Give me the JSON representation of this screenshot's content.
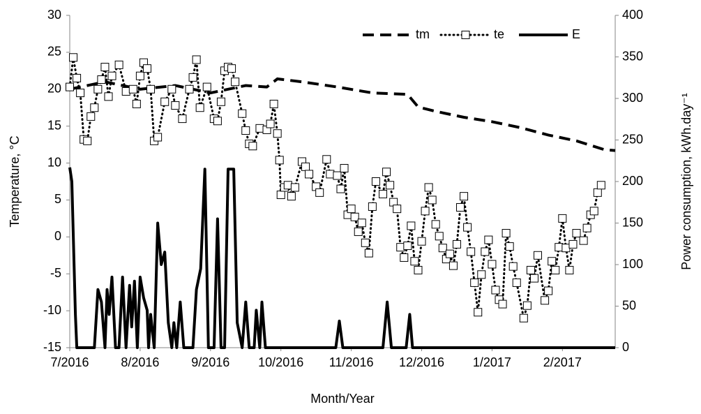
{
  "chart_data": {
    "type": "line",
    "xlabel": "Month/Year",
    "ylabel": "Temperature, °C",
    "y2label": "Power consumption, kWh.day⁻¹",
    "xlim": [
      0,
      7.75
    ],
    "xticks": [
      {
        "value": 0,
        "label": "7/2016"
      },
      {
        "value": 1,
        "label": "8/2016"
      },
      {
        "value": 2,
        "label": "9/2016"
      },
      {
        "value": 3,
        "label": "10/2016"
      },
      {
        "value": 4,
        "label": "11/2016"
      },
      {
        "value": 5,
        "label": "12/2016"
      },
      {
        "value": 6,
        "label": "1/2017"
      },
      {
        "value": 7,
        "label": "2/2017"
      }
    ],
    "ylim": [
      -15,
      30
    ],
    "yticks": [
      -15,
      -10,
      -5,
      0,
      5,
      10,
      15,
      20,
      25,
      30
    ],
    "y2lim": [
      0,
      400
    ],
    "y2ticks": [
      0,
      50,
      100,
      150,
      200,
      250,
      300,
      350,
      400
    ],
    "legend": "top-right",
    "series": [
      {
        "name": "tm",
        "color": "#000000",
        "style": "dashed",
        "x": [
          0,
          0.5,
          1,
          1.5,
          2,
          2.5,
          2.8,
          2.95,
          3.3,
          3.8,
          4.3,
          4.8,
          4.95,
          5.2,
          5.6,
          6.0,
          6.4,
          6.8,
          7.2,
          7.6,
          7.75
        ],
        "values": [
          20,
          21,
          20,
          20.5,
          19.5,
          20.5,
          20.3,
          21.4,
          21,
          20.3,
          19.5,
          19.3,
          17.6,
          17,
          16.2,
          15.6,
          14.8,
          13.8,
          13,
          11.8,
          11.7
        ]
      },
      {
        "name": "te",
        "color": "#000000",
        "style": "markers",
        "x": [
          0,
          0.05,
          0.1,
          0.15,
          0.2,
          0.25,
          0.3,
          0.35,
          0.4,
          0.45,
          0.5,
          0.55,
          0.6,
          0.7,
          0.8,
          0.9,
          0.95,
          1.0,
          1.05,
          1.1,
          1.15,
          1.2,
          1.25,
          1.35,
          1.45,
          1.5,
          1.6,
          1.7,
          1.75,
          1.8,
          1.85,
          1.95,
          2.05,
          2.1,
          2.15,
          2.2,
          2.25,
          2.3,
          2.35,
          2.45,
          2.5,
          2.55,
          2.6,
          2.7,
          2.8,
          2.85,
          2.9,
          2.95,
          2.98,
          3.0,
          3.05,
          3.1,
          3.15,
          3.2,
          3.3,
          3.35,
          3.4,
          3.5,
          3.55,
          3.65,
          3.7,
          3.8,
          3.85,
          3.9,
          3.95,
          4.0,
          4.05,
          4.1,
          4.15,
          4.2,
          4.25,
          4.3,
          4.35,
          4.45,
          4.5,
          4.55,
          4.6,
          4.65,
          4.7,
          4.75,
          4.8,
          4.85,
          4.9,
          4.95,
          5.0,
          5.05,
          5.1,
          5.15,
          5.2,
          5.25,
          5.3,
          5.35,
          5.4,
          5.45,
          5.5,
          5.55,
          5.6,
          5.65,
          5.7,
          5.75,
          5.8,
          5.85,
          5.9,
          5.95,
          6.0,
          6.05,
          6.1,
          6.15,
          6.2,
          6.25,
          6.3,
          6.35,
          6.45,
          6.5,
          6.55,
          6.6,
          6.65,
          6.75,
          6.8,
          6.85,
          6.9,
          6.95,
          7.0,
          7.05,
          7.1,
          7.15,
          7.2,
          7.3,
          7.35,
          7.4,
          7.45,
          7.5,
          7.55
        ],
        "values": [
          20.3,
          24.3,
          21.5,
          19.5,
          13.2,
          13,
          16.3,
          17.5,
          20,
          21.3,
          23,
          19,
          21.8,
          23.3,
          19.7,
          20,
          18,
          21.8,
          23.6,
          22.8,
          20,
          13,
          13.5,
          18.3,
          20,
          17.8,
          16,
          20,
          21.6,
          24,
          17.5,
          20.3,
          16,
          15.7,
          18.3,
          22.5,
          23,
          22.8,
          21,
          16.7,
          14.4,
          12.6,
          12.3,
          14.7,
          14.5,
          15.3,
          18,
          14,
          10.4,
          5.7,
          6.7,
          7,
          5.5,
          6.7,
          10.2,
          9.5,
          8.5,
          6.8,
          6,
          10.5,
          8.5,
          8.3,
          6.5,
          9.3,
          3,
          3.8,
          2.7,
          0.7,
          1.9,
          -0.8,
          -2.2,
          4.1,
          7.5,
          5.8,
          8.8,
          7,
          4.7,
          3.8,
          -1.4,
          -2.8,
          -1.2,
          1.5,
          -3.3,
          -4.5,
          -0.6,
          3.5,
          6.7,
          5,
          1.7,
          0.1,
          -1.5,
          -3,
          -2.3,
          -3.9,
          -1,
          4,
          5.5,
          1.3,
          -2,
          -6.2,
          -10.2,
          -5.1,
          -2,
          -0.4,
          -3.7,
          -7.2,
          -8.5,
          -9.1,
          0.5,
          -1.3,
          -4,
          -6.2,
          -11,
          -9.3,
          -4.5,
          -5.6,
          -2.5,
          -8.6,
          -7.3,
          -3.3,
          -4.5,
          -1.4,
          2.5,
          -1.5,
          -4.5,
          -1,
          0.5,
          -0.5,
          1.2,
          3,
          3.5,
          6,
          7
        ]
      },
      {
        "name": "E",
        "color": "#000000",
        "style": "solid",
        "axis": "y2",
        "x": [
          0,
          0.03,
          0.08,
          0.1,
          0.35,
          0.4,
          0.45,
          0.5,
          0.53,
          0.56,
          0.6,
          0.65,
          0.7,
          0.75,
          0.8,
          0.85,
          0.88,
          0.92,
          0.96,
          1.0,
          1.05,
          1.1,
          1.12,
          1.15,
          1.2,
          1.25,
          1.3,
          1.35,
          1.4,
          1.45,
          1.48,
          1.52,
          1.57,
          1.62,
          1.75,
          1.8,
          1.86,
          1.92,
          1.97,
          2.05,
          2.1,
          2.15,
          2.2,
          2.25,
          2.33,
          2.38,
          2.45,
          2.5,
          2.55,
          2.62,
          2.65,
          2.7,
          2.73,
          2.78,
          3.78,
          3.83,
          3.88,
          4.45,
          4.51,
          4.57,
          4.78,
          4.83,
          4.87,
          7.75
        ],
        "values": [
          217,
          200,
          40,
          0,
          0,
          70,
          55,
          0,
          70,
          40,
          85,
          0,
          0,
          85,
          0,
          75,
          25,
          80,
          0,
          85,
          60,
          45,
          0,
          40,
          0,
          150,
          100,
          115,
          30,
          0,
          30,
          0,
          55,
          0,
          0,
          70,
          95,
          215,
          0,
          0,
          155,
          0,
          0,
          215,
          215,
          30,
          0,
          55,
          0,
          0,
          45,
          0,
          55,
          0,
          0,
          32,
          0,
          0,
          55,
          0,
          0,
          40,
          0,
          0
        ]
      }
    ]
  }
}
